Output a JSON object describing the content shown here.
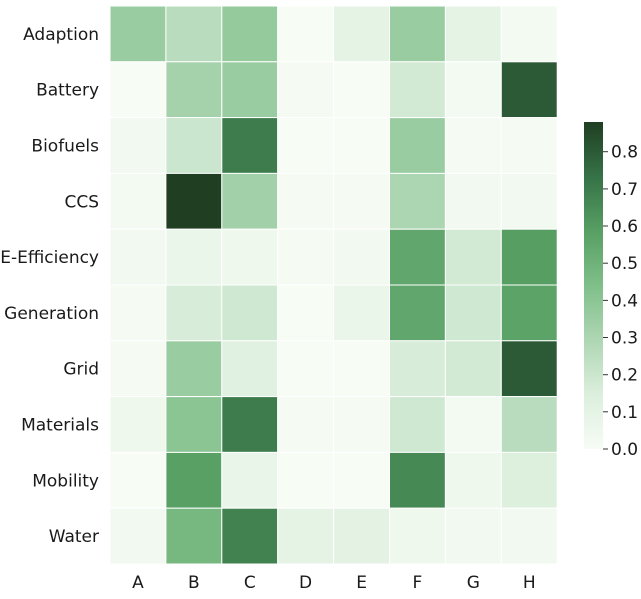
{
  "chart_data": {
    "type": "heatmap",
    "title": "",
    "xlabel": "",
    "ylabel": "",
    "columns": [
      "A",
      "B",
      "C",
      "D",
      "E",
      "F",
      "G",
      "H"
    ],
    "rows": [
      "Adaption",
      "Battery",
      "Biofuels",
      "CCS",
      "E-Efficiency",
      "Generation",
      "Grid",
      "Materials",
      "Mobility",
      "Water"
    ],
    "values": [
      [
        0.36,
        0.26,
        0.37,
        0.0,
        0.1,
        0.36,
        0.1,
        0.02
      ],
      [
        0.0,
        0.32,
        0.36,
        0.01,
        0.0,
        0.18,
        0.02,
        0.8
      ],
      [
        0.03,
        0.2,
        0.7,
        0.0,
        0.0,
        0.36,
        0.01,
        0.01
      ],
      [
        0.02,
        0.88,
        0.33,
        0.01,
        0.01,
        0.3,
        0.03,
        0.03
      ],
      [
        0.03,
        0.07,
        0.05,
        0.01,
        0.03,
        0.55,
        0.18,
        0.59
      ],
      [
        0.01,
        0.16,
        0.19,
        0.0,
        0.07,
        0.55,
        0.19,
        0.57
      ],
      [
        0.01,
        0.36,
        0.12,
        0.0,
        0.0,
        0.16,
        0.18,
        0.8
      ],
      [
        0.05,
        0.4,
        0.7,
        0.01,
        0.01,
        0.19,
        0.02,
        0.26
      ],
      [
        0.0,
        0.58,
        0.08,
        0.0,
        0.0,
        0.66,
        0.05,
        0.14
      ],
      [
        0.03,
        0.47,
        0.68,
        0.1,
        0.11,
        0.05,
        0.03,
        0.03
      ]
    ],
    "colorbar": {
      "min": 0.0,
      "max": 0.88,
      "ticks": [
        "0.0",
        "0.1",
        "0.2",
        "0.3",
        "0.4",
        "0.5",
        "0.6",
        "0.7",
        "0.8"
      ],
      "tick_values": [
        0.0,
        0.1,
        0.2,
        0.3,
        0.4,
        0.5,
        0.6,
        0.7,
        0.8
      ],
      "colors": [
        "#f7fcf5",
        "#dcefdd",
        "#aed6b3",
        "#7fbf89",
        "#579f63",
        "#367247",
        "#1f3e22"
      ]
    },
    "grid": false,
    "legend": "colorbar-right"
  }
}
